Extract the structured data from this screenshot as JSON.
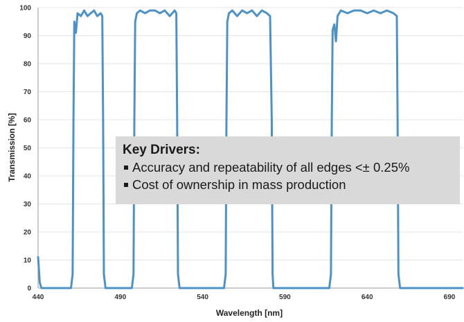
{
  "chart_data": {
    "type": "line",
    "title": "",
    "xlabel": "Wavelength [nm]",
    "ylabel": "Transmission [%]",
    "xlim": [
      440,
      698
    ],
    "ylim": [
      0,
      100
    ],
    "x_ticks": [
      440,
      490,
      540,
      590,
      640,
      690
    ],
    "y_ticks": [
      0,
      10,
      20,
      30,
      40,
      50,
      60,
      70,
      80,
      90,
      100
    ],
    "grid": "horizontal",
    "line_color": "#4d92c7",
    "series": [
      {
        "x": [
          440,
          441,
          442,
          444,
          460,
          461,
          461.5,
          462,
          463,
          464,
          466,
          468,
          470,
          472,
          474,
          476,
          478,
          479,
          479.5,
          480,
          481,
          482,
          497,
          498,
          498.5,
          499,
          500,
          502,
          505,
          508,
          511,
          514,
          517,
          520,
          523,
          524,
          524.5,
          525,
          526,
          527,
          553,
          554,
          554.5,
          555,
          556,
          558,
          561,
          564,
          567,
          570,
          573,
          576,
          579,
          581,
          582,
          582.5,
          583,
          584,
          585,
          617,
          618,
          618.5,
          619,
          620,
          621,
          622,
          624,
          628,
          632,
          636,
          640,
          644,
          648,
          652,
          656,
          658,
          658.5,
          659,
          660,
          661,
          698
        ],
        "y": [
          11,
          2,
          0,
          0,
          0,
          5,
          60,
          95,
          91,
          98,
          97,
          99,
          97,
          98,
          99,
          97,
          98,
          97,
          60,
          5,
          0,
          0,
          0,
          5,
          60,
          95,
          98,
          99,
          98,
          99,
          99,
          98,
          99,
          97,
          99,
          98,
          60,
          5,
          0,
          0,
          0,
          5,
          60,
          95,
          98,
          99,
          97,
          99,
          98,
          99,
          97,
          99,
          98,
          97,
          60,
          5,
          0,
          0,
          0,
          0,
          5,
          60,
          92,
          94,
          88,
          97,
          99,
          98,
          99,
          99,
          98,
          99,
          98,
          99,
          98,
          97,
          60,
          5,
          0,
          0,
          0
        ]
      }
    ]
  },
  "callout": {
    "title": "Key Drivers:",
    "items": [
      "Accuracy and repeatability of all edges <± 0.25%",
      "Cost of ownership in mass production"
    ]
  }
}
